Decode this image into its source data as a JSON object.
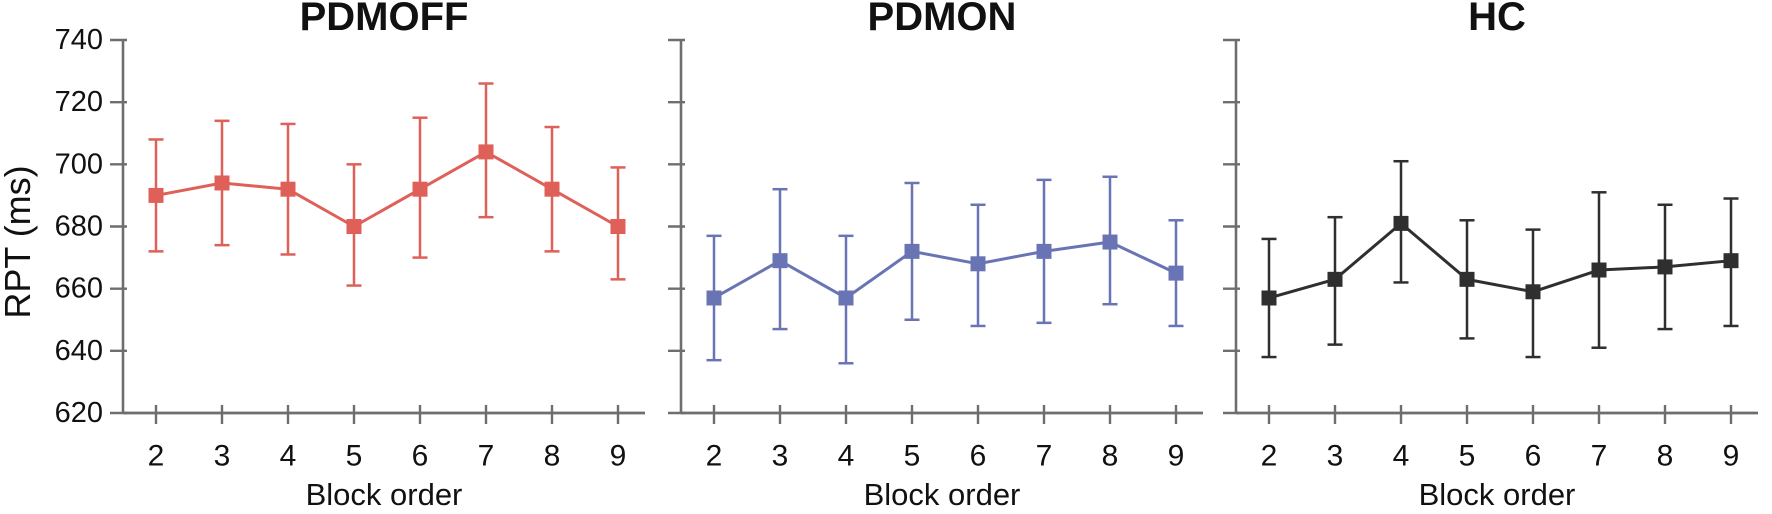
{
  "figure": {
    "ylabel": "RPT (ms)",
    "xlabel": "Block order",
    "background": "#ffffff",
    "axis_color": "#6e6e6e",
    "text_color": "#111111"
  },
  "chart_data": [
    {
      "type": "line",
      "title": "PDMOFF",
      "color": "#df6059",
      "error_bar_color": "#df6059",
      "categories": [
        "2",
        "3",
        "4",
        "5",
        "6",
        "7",
        "8",
        "9"
      ],
      "values": [
        690,
        694,
        692,
        680,
        692,
        704,
        692,
        680
      ],
      "err_upper": [
        708,
        714,
        713,
        700,
        715,
        726,
        712,
        699
      ],
      "err_lower": [
        672,
        674,
        671,
        661,
        670,
        683,
        672,
        663
      ],
      "xlabel": "Block order",
      "ylabel": "RPT (ms)",
      "ylim": [
        620,
        740
      ],
      "yticks": [
        620,
        640,
        660,
        680,
        700,
        720,
        740
      ],
      "show_y_tick_labels": true,
      "grid": false,
      "legend": "none",
      "marker": "square"
    },
    {
      "type": "line",
      "title": "PDMON",
      "color": "#6874b4",
      "error_bar_color": "#6874b4",
      "categories": [
        "2",
        "3",
        "4",
        "5",
        "6",
        "7",
        "8",
        "9"
      ],
      "values": [
        657,
        669,
        657,
        672,
        668,
        672,
        675,
        665
      ],
      "err_upper": [
        677,
        692,
        677,
        694,
        687,
        695,
        696,
        682
      ],
      "err_lower": [
        637,
        647,
        636,
        650,
        648,
        649,
        655,
        648
      ],
      "xlabel": "Block order",
      "ylabel": "",
      "ylim": [
        620,
        740
      ],
      "yticks": [
        620,
        640,
        660,
        680,
        700,
        720,
        740
      ],
      "show_y_tick_labels": false,
      "grid": false,
      "legend": "none",
      "marker": "square"
    },
    {
      "type": "line",
      "title": "HC",
      "color": "#2f2f2f",
      "error_bar_color": "#2f2f2f",
      "categories": [
        "2",
        "3",
        "4",
        "5",
        "6",
        "7",
        "8",
        "9"
      ],
      "values": [
        657,
        663,
        681,
        663,
        659,
        666,
        667,
        669
      ],
      "err_upper": [
        676,
        683,
        701,
        682,
        679,
        691,
        687,
        689
      ],
      "err_lower": [
        638,
        642,
        662,
        644,
        638,
        641,
        647,
        648
      ],
      "xlabel": "Block order",
      "ylabel": "",
      "ylim": [
        620,
        740
      ],
      "yticks": [
        620,
        640,
        660,
        680,
        700,
        720,
        740
      ],
      "show_y_tick_labels": false,
      "grid": false,
      "legend": "none",
      "marker": "square"
    }
  ]
}
